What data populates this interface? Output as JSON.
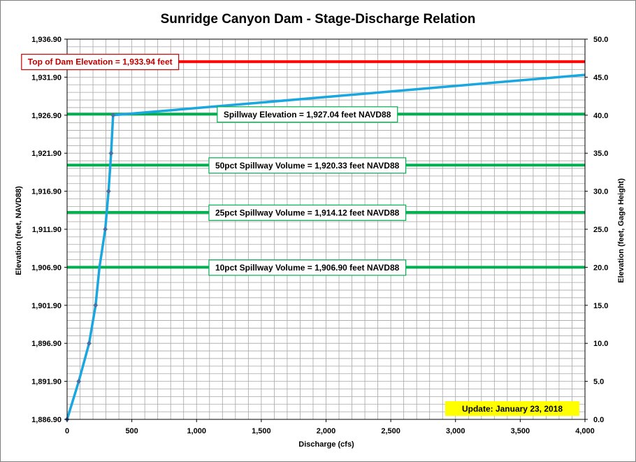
{
  "chart_data": {
    "type": "line",
    "title": "Sunridge Canyon Dam - Stage-Discharge Relation",
    "xlabel": "Discharge  (cfs)",
    "ylabel_left": "Elevation  (feet, NAVD88)",
    "ylabel_right": "Elevation  (feet, Gage Height)",
    "xlim": [
      0,
      4000
    ],
    "ylim_left": [
      1886.9,
      1936.9
    ],
    "ylim_right": [
      0,
      50
    ],
    "grid": true,
    "x_tick_labels": [
      "0",
      "500",
      "1,000",
      "1,500",
      "2,000",
      "2,500",
      "3,000",
      "3,500",
      "4,000"
    ],
    "x_tick_values": [
      0,
      500,
      1000,
      1500,
      2000,
      2500,
      3000,
      3500,
      4000
    ],
    "y_left_tick_labels": [
      "1,886.90",
      "1,891.90",
      "1,896.90",
      "1,901.90",
      "1,906.90",
      "1,911.90",
      "1,916.90",
      "1,921.90",
      "1,926.90",
      "1,931.90",
      "1,936.90"
    ],
    "y_left_tick_values": [
      1886.9,
      1891.9,
      1896.9,
      1901.9,
      1906.9,
      1911.9,
      1916.9,
      1921.9,
      1926.9,
      1931.9,
      1936.9
    ],
    "y_right_tick_labels": [
      "0.0",
      "5.0",
      "10.0",
      "15.0",
      "20.0",
      "25.0",
      "30.0",
      "35.0",
      "40.0",
      "45.0",
      "50.0"
    ],
    "y_right_tick_values": [
      0,
      5,
      10,
      15,
      20,
      25,
      30,
      35,
      40,
      45,
      50
    ],
    "series": [
      {
        "color": "#1aa7e0",
        "marker_color": "#4a6fa5",
        "points": [
          {
            "x": 0,
            "y": 0,
            "marker": true
          },
          {
            "x": 90,
            "y": 5,
            "marker": true
          },
          {
            "x": 170,
            "y": 10,
            "marker": true
          },
          {
            "x": 220,
            "y": 15,
            "marker": true
          },
          {
            "x": 250,
            "y": 20,
            "marker": false
          },
          {
            "x": 295,
            "y": 25,
            "marker": true
          },
          {
            "x": 320,
            "y": 30,
            "marker": true
          },
          {
            "x": 340,
            "y": 35,
            "marker": true
          },
          {
            "x": 355,
            "y": 40,
            "marker": true
          },
          {
            "x": 4000,
            "y": 45.3,
            "marker": false
          }
        ]
      }
    ],
    "reference_lines": [
      {
        "y_elevation": 1933.94,
        "color": "#ff0000",
        "label": "Top of Dam Elevation = 1,933.94 feet",
        "label_x": 255,
        "label_color": "#c00000",
        "label_border": "#c00000"
      },
      {
        "y_elevation": 1927.04,
        "color": "#00b050",
        "label": "Spillway Elevation = 1,927.04 feet NAVD88",
        "label_x": 1855,
        "label_color": "#000000",
        "label_border": "#00b050"
      },
      {
        "y_elevation": 1920.33,
        "color": "#00b050",
        "label": "50pct Spillway Volume = 1,920.33 feet NAVD88",
        "label_x": 1855,
        "label_color": "#000000",
        "label_border": "#00b050"
      },
      {
        "y_elevation": 1914.12,
        "color": "#00b050",
        "label": "25pct Spillway Volume = 1,914.12 feet NAVD88",
        "label_x": 1855,
        "label_color": "#000000",
        "label_border": "#00b050"
      },
      {
        "y_elevation": 1906.9,
        "color": "#00b050",
        "label": "10pct Spillway Volume = 1,906.90 feet NAVD88",
        "label_x": 1855,
        "label_color": "#000000",
        "label_border": "#00b050"
      }
    ],
    "update_note": {
      "text": "Update: January 23, 2018",
      "background": "#ffff00"
    },
    "colors": {
      "grid": "#a6a6a6",
      "axis": "#000000"
    }
  }
}
